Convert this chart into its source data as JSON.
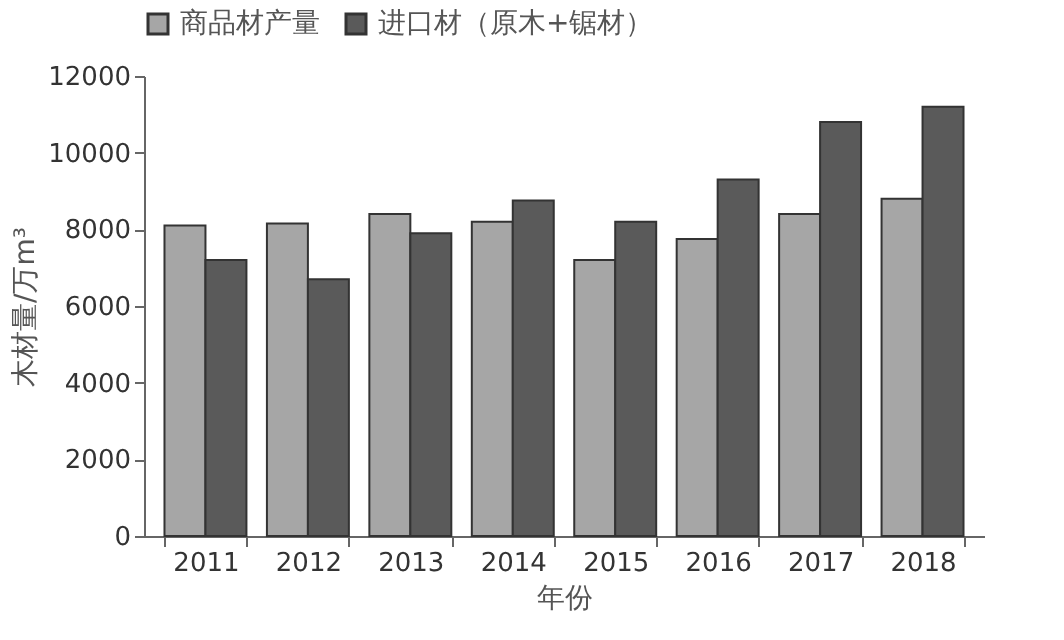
{
  "chart_data": {
    "type": "bar",
    "xlabel": "年份",
    "ylabel": "木材量/万m³",
    "categories": [
      "2011",
      "2012",
      "2013",
      "2014",
      "2015",
      "2016",
      "2017",
      "2018"
    ],
    "series": [
      {
        "name": "商品材产量",
        "color": "#a6a6a6",
        "values": [
          8100,
          8150,
          8400,
          8200,
          7200,
          7750,
          8400,
          8800
        ]
      },
      {
        "name": "进口材（原木+锯材）",
        "color": "#5a5a5a",
        "values": [
          7200,
          6700,
          7900,
          8750,
          8200,
          9300,
          10800,
          11200
        ]
      }
    ],
    "ylim": [
      0,
      12000
    ],
    "yticks": [
      0,
      2000,
      4000,
      6000,
      8000,
      10000,
      12000
    ],
    "grid": false,
    "legend": "top"
  }
}
